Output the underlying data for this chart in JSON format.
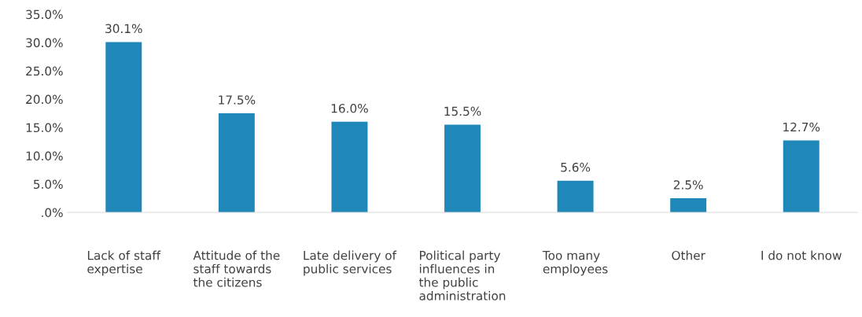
{
  "chart_data": {
    "type": "bar",
    "categories": [
      "Lack of staff\nexpertise",
      "Attitude of the\nstaff towards\nthe citizens",
      "Late delivery of\npublic services",
      "Political party\ninfluences in\nthe public\nadministration",
      "Too many\nemployees",
      "Other",
      "I do not know"
    ],
    "values": [
      30.1,
      17.5,
      16.0,
      15.5,
      5.6,
      2.5,
      12.7
    ],
    "value_labels": [
      "30.1%",
      "17.5%",
      "16.0%",
      "15.5%",
      "5.6%",
      "2.5%",
      "12.7%"
    ],
    "color": "#1f88b8",
    "ylim": [
      0,
      35
    ],
    "yticks": [
      {
        "value": 0,
        "label": ".0%"
      },
      {
        "value": 5,
        "label": "5.0%"
      },
      {
        "value": 10,
        "label": "10.0%"
      },
      {
        "value": 15,
        "label": "15.0%"
      },
      {
        "value": 20,
        "label": "20.0%"
      },
      {
        "value": 25,
        "label": "25.0%"
      },
      {
        "value": 30,
        "label": "30.0%"
      },
      {
        "value": 35,
        "label": "35.0%"
      }
    ],
    "grid": false,
    "legend": false
  }
}
